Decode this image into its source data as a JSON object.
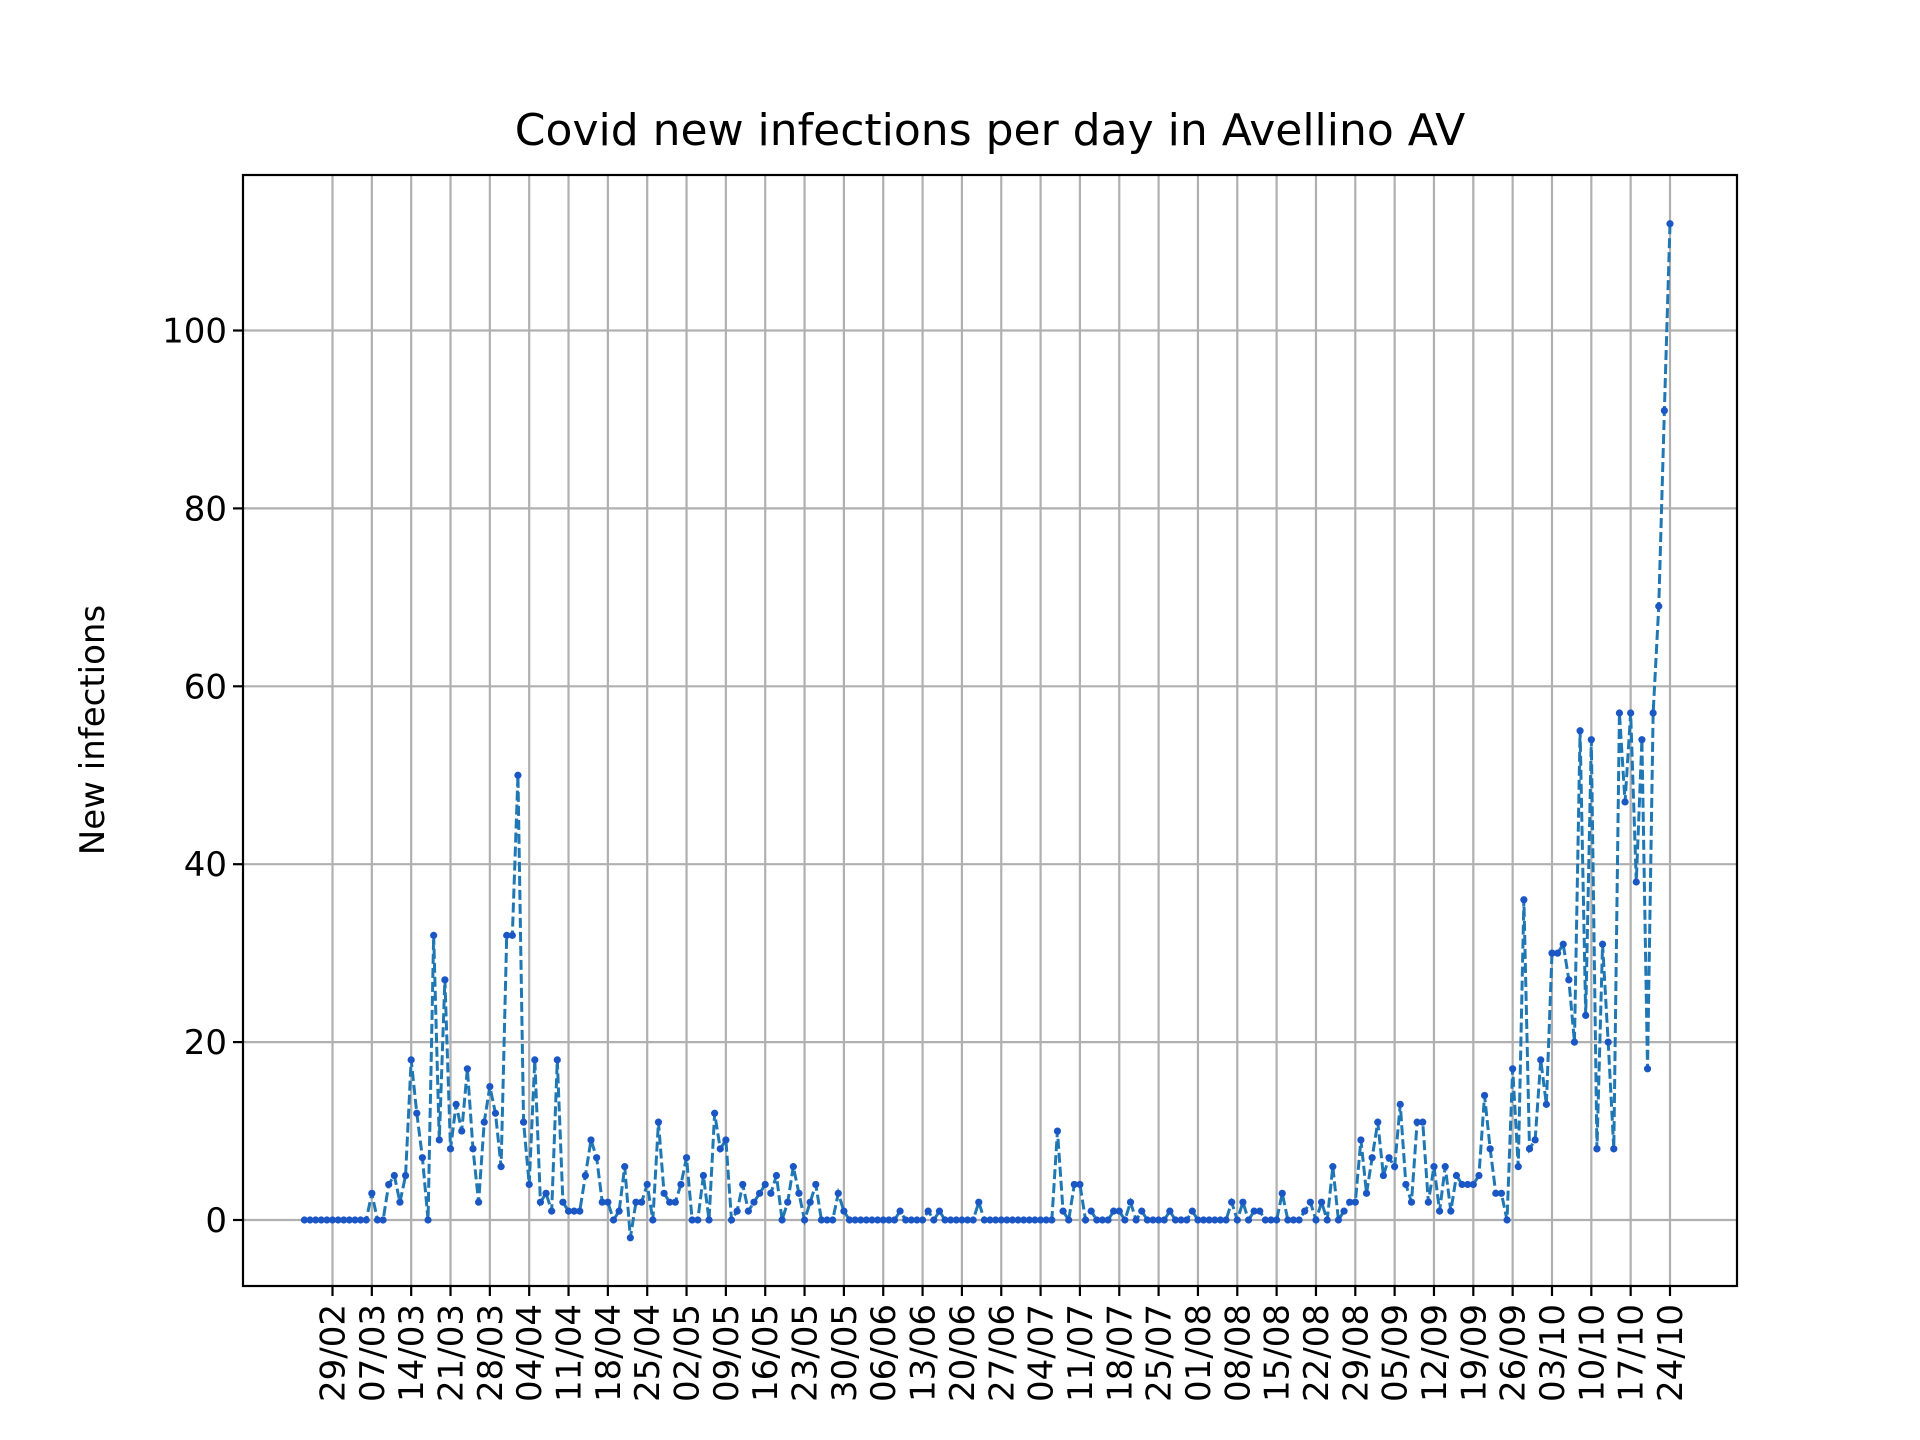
{
  "chart_data": {
    "type": "line",
    "title": "Covid new infections per day in Avellino AV",
    "xlabel": "",
    "ylabel": "New infections",
    "grid": true,
    "colors": {
      "line": "#1f77b4",
      "marker": "#1a56c4"
    },
    "line_style": "dashed",
    "marker": "dot",
    "ylim": [
      -8,
      118
    ],
    "y_ticks": [
      0,
      20,
      40,
      60,
      80,
      100
    ],
    "x_start": "24/02",
    "x_end": "24/10",
    "x_ticks": [
      "29/02",
      "07/03",
      "14/03",
      "21/03",
      "28/03",
      "04/04",
      "11/04",
      "18/04",
      "25/04",
      "02/05",
      "09/05",
      "16/05",
      "23/05",
      "30/05",
      "06/06",
      "13/06",
      "20/06",
      "27/06",
      "04/07",
      "11/07",
      "18/07",
      "25/07",
      "01/08",
      "08/08",
      "15/08",
      "22/08",
      "29/08",
      "05/09",
      "12/09",
      "19/09",
      "26/09",
      "03/10",
      "10/10",
      "17/10",
      "24/10"
    ],
    "series": [
      {
        "values": [
          0,
          0,
          0,
          0,
          0,
          0,
          0,
          0,
          0,
          0,
          0,
          0,
          3,
          0,
          0,
          4,
          5,
          2,
          5,
          18,
          12,
          7,
          0,
          32,
          9,
          27,
          8,
          13,
          10,
          17,
          8,
          2,
          11,
          15,
          12,
          6,
          32,
          32,
          50,
          11,
          4,
          18,
          2,
          3,
          1,
          18,
          2,
          1,
          1,
          1,
          5,
          9,
          7,
          2,
          2,
          0,
          1,
          6,
          -2,
          2,
          2,
          4,
          0,
          11,
          3,
          2,
          2,
          4,
          7,
          0,
          0,
          5,
          0,
          12,
          8,
          9,
          0,
          1,
          4,
          1,
          2,
          3,
          4,
          3,
          5,
          0,
          2,
          6,
          3,
          0,
          2,
          4,
          0,
          0,
          0,
          3,
          1,
          0,
          0,
          0,
          0,
          0,
          0,
          0,
          0,
          0,
          1,
          0,
          0,
          0,
          0,
          1,
          0,
          1,
          0,
          0,
          0,
          0,
          0,
          0,
          2,
          0,
          0,
          0,
          0,
          0,
          0,
          0,
          0,
          0,
          0,
          0,
          0,
          0,
          10,
          1,
          0,
          4,
          4,
          0,
          1,
          0,
          0,
          0,
          1,
          1,
          0,
          2,
          0,
          1,
          0,
          0,
          0,
          0,
          1,
          0,
          0,
          0,
          1,
          0,
          0,
          0,
          0,
          0,
          0,
          2,
          0,
          2,
          0,
          1,
          1,
          0,
          0,
          0,
          3,
          0,
          0,
          0,
          1,
          2,
          0,
          2,
          0,
          6,
          0,
          1,
          2,
          2,
          9,
          3,
          7,
          11,
          5,
          7,
          6,
          13,
          4,
          2,
          11,
          11,
          2,
          6,
          1,
          6,
          1,
          5,
          4,
          4,
          4,
          5,
          14,
          8,
          3,
          3,
          0,
          17,
          6,
          36,
          8,
          9,
          18,
          13,
          30,
          30,
          31,
          27,
          20,
          55,
          23,
          54,
          8,
          31,
          20,
          8,
          57,
          47,
          57,
          38,
          54,
          17,
          57,
          69,
          91,
          112
        ]
      }
    ]
  }
}
